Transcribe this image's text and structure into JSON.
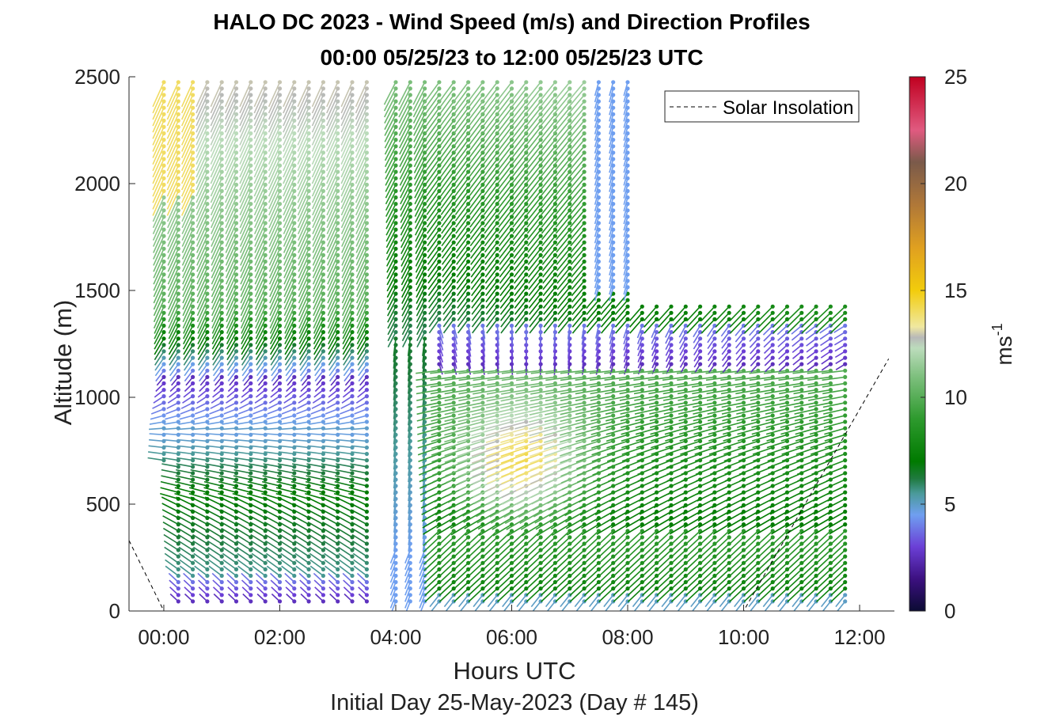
{
  "chart_data": {
    "type": "scatter",
    "title": "HALO DC 2023 - Wind Speed (m/s) and Direction Profiles",
    "subtitle": "00:00 05/25/23 to 12:00 05/25/23  UTC",
    "xlabel": "Hours UTC",
    "x_sublabel": "Initial Day 25-May-2023 (Day # 145)",
    "ylabel": "Altitude (m)",
    "x_ticks": [
      "00:00",
      "02:00",
      "04:00",
      "06:00",
      "08:00",
      "10:00",
      "12:00"
    ],
    "x_tick_hours": [
      0,
      2,
      4,
      6,
      8,
      10,
      12
    ],
    "xlim_hours": [
      -0.6,
      12.6
    ],
    "y_ticks": [
      0,
      500,
      1000,
      1500,
      2000,
      2500
    ],
    "ylim": [
      0,
      2500
    ],
    "colorbar": {
      "label": "ms-1",
      "label_base": "ms",
      "label_sup": "-1",
      "ticks": [
        0,
        5,
        10,
        15,
        20,
        25
      ],
      "range": [
        0,
        25
      ],
      "stops": [
        {
          "v": 0,
          "c": "#0b0b33"
        },
        {
          "v": 1.5,
          "c": "#3c1080"
        },
        {
          "v": 3,
          "c": "#6b3fd6"
        },
        {
          "v": 4.5,
          "c": "#6f9ff0"
        },
        {
          "v": 5.5,
          "c": "#4a9a9a"
        },
        {
          "v": 6.2,
          "c": "#1f7a3f"
        },
        {
          "v": 7,
          "c": "#007a00"
        },
        {
          "v": 9,
          "c": "#2e9a2e"
        },
        {
          "v": 11,
          "c": "#7fc07f"
        },
        {
          "v": 12.3,
          "c": "#bcdcbc"
        },
        {
          "v": 12.8,
          "c": "#b8b8b8"
        },
        {
          "v": 13.3,
          "c": "#f0e8a0"
        },
        {
          "v": 15,
          "c": "#f2cc0c"
        },
        {
          "v": 17,
          "c": "#e0a020"
        },
        {
          "v": 19,
          "c": "#b07838"
        },
        {
          "v": 21,
          "c": "#7a5a4a"
        },
        {
          "v": 22.5,
          "c": "#e05a80"
        },
        {
          "v": 25,
          "c": "#c00020"
        }
      ]
    },
    "legend": {
      "label": "Solar Insolation",
      "position": "top-right",
      "line_style": "dashed"
    },
    "series": [
      {
        "name": "Solar Insolation",
        "style": "dashed",
        "x_hours": [
          -0.6,
          0.0,
          10.0,
          12.5
        ],
        "y": [
          330,
          0,
          0,
          1180
        ]
      }
    ],
    "profiles": {
      "times_hours": [
        0,
        0.25,
        0.5,
        0.75,
        1.0,
        1.25,
        1.5,
        1.75,
        2.0,
        2.25,
        2.5,
        2.75,
        3.0,
        3.25,
        3.5,
        4.0,
        4.25,
        4.5,
        4.75,
        5.0,
        5.25,
        5.5,
        5.75,
        6.0,
        6.25,
        6.5,
        6.75,
        7.0,
        7.25,
        7.5,
        7.75,
        8.0,
        8.25,
        8.5,
        8.75,
        9.0,
        9.25,
        9.5,
        9.75,
        10.0,
        10.25,
        10.5,
        10.75,
        11.0,
        11.25,
        11.5,
        11.75
      ],
      "altitude_step_m": 30,
      "note_speed_units": "m/s"
    }
  }
}
